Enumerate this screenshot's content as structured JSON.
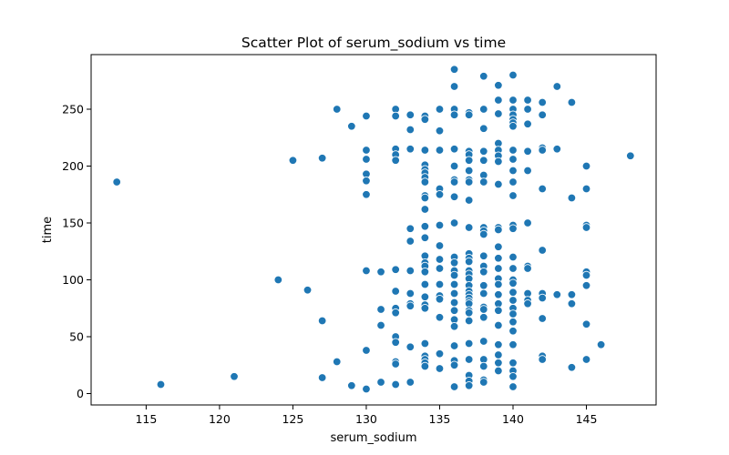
{
  "chart_data": {
    "type": "scatter",
    "title": "Scatter Plot of serum_sodium vs time",
    "xlabel": "serum_sodium",
    "ylabel": "time",
    "xlim": [
      111.25,
      149.75
    ],
    "ylim": [
      -10,
      298
    ],
    "xticks": [
      115,
      120,
      125,
      130,
      135,
      140,
      145
    ],
    "yticks": [
      0,
      50,
      100,
      150,
      200,
      250
    ],
    "grid": false,
    "marker_color": "#1f77b4",
    "edge_color": "#ffffff",
    "points": [
      [
        113,
        186
      ],
      [
        116,
        8
      ],
      [
        121,
        15
      ],
      [
        124,
        100
      ],
      [
        125,
        205
      ],
      [
        126,
        91
      ],
      [
        127,
        207
      ],
      [
        127,
        64
      ],
      [
        127,
        14
      ],
      [
        128,
        250
      ],
      [
        128,
        28
      ],
      [
        129,
        235
      ],
      [
        129,
        7
      ],
      [
        130,
        244
      ],
      [
        130,
        214
      ],
      [
        130,
        206
      ],
      [
        130,
        193
      ],
      [
        130,
        187
      ],
      [
        130,
        175
      ],
      [
        130,
        108
      ],
      [
        130,
        38
      ],
      [
        130,
        4
      ],
      [
        131,
        107
      ],
      [
        131,
        74
      ],
      [
        131,
        60
      ],
      [
        131,
        10
      ],
      [
        132,
        250
      ],
      [
        132,
        244
      ],
      [
        132,
        215
      ],
      [
        132,
        210
      ],
      [
        132,
        205
      ],
      [
        132,
        109
      ],
      [
        132,
        90
      ],
      [
        132,
        75
      ],
      [
        132,
        71
      ],
      [
        132,
        50
      ],
      [
        132,
        45
      ],
      [
        132,
        28
      ],
      [
        132,
        26
      ],
      [
        132,
        8
      ],
      [
        133,
        245
      ],
      [
        133,
        232
      ],
      [
        133,
        215
      ],
      [
        133,
        145
      ],
      [
        133,
        134
      ],
      [
        133,
        108
      ],
      [
        133,
        88
      ],
      [
        133,
        79
      ],
      [
        133,
        77
      ],
      [
        133,
        41
      ],
      [
        133,
        10
      ],
      [
        134,
        244
      ],
      [
        134,
        241
      ],
      [
        134,
        214
      ],
      [
        134,
        201
      ],
      [
        134,
        197
      ],
      [
        134,
        194
      ],
      [
        134,
        190
      ],
      [
        134,
        186
      ],
      [
        134,
        174
      ],
      [
        134,
        172
      ],
      [
        134,
        162
      ],
      [
        134,
        147
      ],
      [
        134,
        137
      ],
      [
        134,
        121
      ],
      [
        134,
        115
      ],
      [
        134,
        112
      ],
      [
        134,
        107
      ],
      [
        134,
        96
      ],
      [
        134,
        85
      ],
      [
        134,
        78
      ],
      [
        134,
        75
      ],
      [
        134,
        44
      ],
      [
        134,
        33
      ],
      [
        134,
        30
      ],
      [
        134,
        27
      ],
      [
        134,
        24
      ],
      [
        135,
        250
      ],
      [
        135,
        231
      ],
      [
        135,
        214
      ],
      [
        135,
        180
      ],
      [
        135,
        175
      ],
      [
        135,
        148
      ],
      [
        135,
        130
      ],
      [
        135,
        118
      ],
      [
        135,
        110
      ],
      [
        135,
        96
      ],
      [
        135,
        86
      ],
      [
        135,
        83
      ],
      [
        135,
        67
      ],
      [
        135,
        35
      ],
      [
        135,
        22
      ],
      [
        136,
        285
      ],
      [
        136,
        270
      ],
      [
        136,
        250
      ],
      [
        136,
        245
      ],
      [
        136,
        215
      ],
      [
        136,
        200
      ],
      [
        136,
        188
      ],
      [
        136,
        186
      ],
      [
        136,
        173
      ],
      [
        136,
        150
      ],
      [
        136,
        120
      ],
      [
        136,
        115
      ],
      [
        136,
        108
      ],
      [
        136,
        104
      ],
      [
        136,
        96
      ],
      [
        136,
        88
      ],
      [
        136,
        80
      ],
      [
        136,
        73
      ],
      [
        136,
        65
      ],
      [
        136,
        59
      ],
      [
        136,
        42
      ],
      [
        136,
        29
      ],
      [
        136,
        25
      ],
      [
        136,
        6
      ],
      [
        137,
        247
      ],
      [
        137,
        245
      ],
      [
        137,
        213
      ],
      [
        137,
        210
      ],
      [
        137,
        205
      ],
      [
        137,
        196
      ],
      [
        137,
        188
      ],
      [
        137,
        186
      ],
      [
        137,
        170
      ],
      [
        137,
        146
      ],
      [
        137,
        123
      ],
      [
        137,
        119
      ],
      [
        137,
        116
      ],
      [
        137,
        108
      ],
      [
        137,
        105
      ],
      [
        137,
        101
      ],
      [
        137,
        95
      ],
      [
        137,
        90
      ],
      [
        137,
        87
      ],
      [
        137,
        84
      ],
      [
        137,
        81
      ],
      [
        137,
        79
      ],
      [
        137,
        73
      ],
      [
        137,
        71
      ],
      [
        137,
        64
      ],
      [
        137,
        44
      ],
      [
        137,
        30
      ],
      [
        137,
        16
      ],
      [
        137,
        11
      ],
      [
        137,
        7
      ],
      [
        138,
        279
      ],
      [
        138,
        250
      ],
      [
        138,
        233
      ],
      [
        138,
        213
      ],
      [
        138,
        205
      ],
      [
        138,
        192
      ],
      [
        138,
        186
      ],
      [
        138,
        146
      ],
      [
        138,
        143
      ],
      [
        138,
        140
      ],
      [
        138,
        121
      ],
      [
        138,
        112
      ],
      [
        138,
        107
      ],
      [
        138,
        95
      ],
      [
        138,
        88
      ],
      [
        138,
        76
      ],
      [
        138,
        74
      ],
      [
        138,
        67
      ],
      [
        138,
        46
      ],
      [
        138,
        30
      ],
      [
        138,
        24
      ],
      [
        138,
        12
      ],
      [
        138,
        10
      ],
      [
        139,
        271
      ],
      [
        139,
        258
      ],
      [
        139,
        246
      ],
      [
        139,
        220
      ],
      [
        139,
        214
      ],
      [
        139,
        209
      ],
      [
        139,
        204
      ],
      [
        139,
        184
      ],
      [
        139,
        146
      ],
      [
        139,
        144
      ],
      [
        139,
        129
      ],
      [
        139,
        119
      ],
      [
        139,
        110
      ],
      [
        139,
        101
      ],
      [
        139,
        96
      ],
      [
        139,
        87
      ],
      [
        139,
        79
      ],
      [
        139,
        73
      ],
      [
        139,
        60
      ],
      [
        139,
        43
      ],
      [
        139,
        34
      ],
      [
        139,
        27
      ],
      [
        139,
        20
      ],
      [
        140,
        280
      ],
      [
        140,
        258
      ],
      [
        140,
        250
      ],
      [
        140,
        245
      ],
      [
        140,
        241
      ],
      [
        140,
        238
      ],
      [
        140,
        235
      ],
      [
        140,
        214
      ],
      [
        140,
        206
      ],
      [
        140,
        196
      ],
      [
        140,
        186
      ],
      [
        140,
        174
      ],
      [
        140,
        148
      ],
      [
        140,
        145
      ],
      [
        140,
        120
      ],
      [
        140,
        110
      ],
      [
        140,
        100
      ],
      [
        140,
        97
      ],
      [
        140,
        89
      ],
      [
        140,
        82
      ],
      [
        140,
        75
      ],
      [
        140,
        70
      ],
      [
        140,
        63
      ],
      [
        140,
        55
      ],
      [
        140,
        43
      ],
      [
        140,
        27
      ],
      [
        140,
        20
      ],
      [
        140,
        15
      ],
      [
        140,
        6
      ],
      [
        141,
        258
      ],
      [
        141,
        250
      ],
      [
        141,
        237
      ],
      [
        141,
        213
      ],
      [
        141,
        196
      ],
      [
        141,
        150
      ],
      [
        141,
        112
      ],
      [
        141,
        110
      ],
      [
        141,
        88
      ],
      [
        141,
        82
      ],
      [
        141,
        79
      ],
      [
        142,
        256
      ],
      [
        142,
        245
      ],
      [
        142,
        216
      ],
      [
        142,
        214
      ],
      [
        142,
        180
      ],
      [
        142,
        126
      ],
      [
        142,
        88
      ],
      [
        142,
        84
      ],
      [
        142,
        66
      ],
      [
        142,
        33
      ],
      [
        142,
        30
      ],
      [
        143,
        270
      ],
      [
        143,
        215
      ],
      [
        143,
        87
      ],
      [
        144,
        256
      ],
      [
        144,
        172
      ],
      [
        144,
        87
      ],
      [
        144,
        79
      ],
      [
        144,
        23
      ],
      [
        145,
        200
      ],
      [
        145,
        180
      ],
      [
        145,
        148
      ],
      [
        145,
        146
      ],
      [
        145,
        107
      ],
      [
        145,
        104
      ],
      [
        145,
        95
      ],
      [
        145,
        61
      ],
      [
        145,
        30
      ],
      [
        146,
        43
      ],
      [
        148,
        209
      ]
    ]
  }
}
